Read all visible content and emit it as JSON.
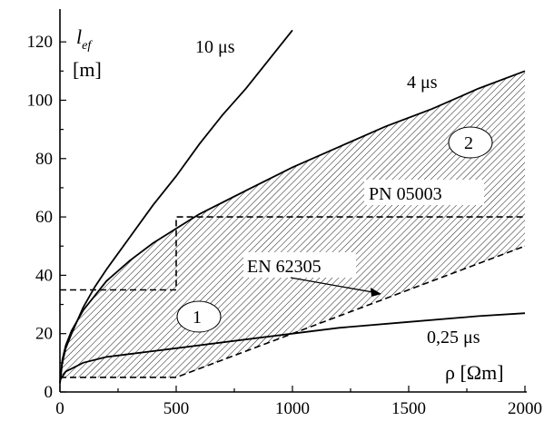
{
  "chart_data": {
    "type": "line",
    "title": "",
    "xlabel": "ρ [Ωm]",
    "ylabel_main": "l",
    "ylabel_sub": "ef",
    "ylabel_unit": "[m]",
    "xlim": [
      0,
      2000
    ],
    "ylim": [
      0,
      130
    ],
    "x_ticks": [
      "0",
      "500",
      "1000",
      "1500",
      "2000"
    ],
    "y_ticks": [
      "0",
      "20",
      "40",
      "60",
      "80",
      "100",
      "120"
    ],
    "grid": false,
    "series": [
      {
        "name": "10 μs",
        "style": "solid",
        "points": [
          [
            0,
            3
          ],
          [
            10,
            10
          ],
          [
            25,
            15
          ],
          [
            50,
            20
          ],
          [
            100,
            29
          ],
          [
            150,
            36
          ],
          [
            200,
            42
          ],
          [
            300,
            53
          ],
          [
            400,
            64
          ],
          [
            500,
            74
          ],
          [
            600,
            85
          ],
          [
            700,
            95
          ],
          [
            800,
            104
          ],
          [
            900,
            114
          ],
          [
            1000,
            124
          ]
        ]
      },
      {
        "name": "4 μs",
        "style": "solid",
        "points": [
          [
            0,
            3
          ],
          [
            10,
            11
          ],
          [
            25,
            16
          ],
          [
            50,
            21
          ],
          [
            100,
            28
          ],
          [
            200,
            38
          ],
          [
            300,
            45
          ],
          [
            400,
            51
          ],
          [
            500,
            56
          ],
          [
            600,
            61
          ],
          [
            800,
            69
          ],
          [
            1000,
            77
          ],
          [
            1200,
            84
          ],
          [
            1400,
            91
          ],
          [
            1600,
            97
          ],
          [
            1800,
            104
          ],
          [
            2000,
            110
          ]
        ]
      },
      {
        "name": "0,25 μs",
        "style": "solid",
        "points": [
          [
            0,
            4
          ],
          [
            25,
            7
          ],
          [
            50,
            8
          ],
          [
            100,
            10
          ],
          [
            200,
            12
          ],
          [
            300,
            13
          ],
          [
            400,
            14
          ],
          [
            500,
            15
          ],
          [
            700,
            17
          ],
          [
            1000,
            20
          ],
          [
            1200,
            22
          ],
          [
            1500,
            24
          ],
          [
            1800,
            26
          ],
          [
            2000,
            27
          ]
        ]
      },
      {
        "name": "PN 05003",
        "style": "dashed",
        "points": [
          [
            0,
            35
          ],
          [
            500,
            35
          ],
          [
            500,
            60
          ],
          [
            2000,
            60
          ]
        ]
      },
      {
        "name": "EN 62305",
        "style": "dashed",
        "points": [
          [
            0,
            5
          ],
          [
            500,
            5
          ],
          [
            2000,
            50
          ]
        ]
      }
    ],
    "regions": [
      {
        "label": "1"
      },
      {
        "label": "2"
      }
    ],
    "annotations": {
      "ten_us": "10 μs",
      "four_us": "4 μs",
      "quarter_us": "0,25 μs",
      "pn": "PN 05003",
      "en": "EN 62305",
      "region1": "1",
      "region2": "2"
    },
    "colors": {
      "line": "#000000",
      "hatch": "#000000",
      "background": "#ffffff"
    }
  }
}
